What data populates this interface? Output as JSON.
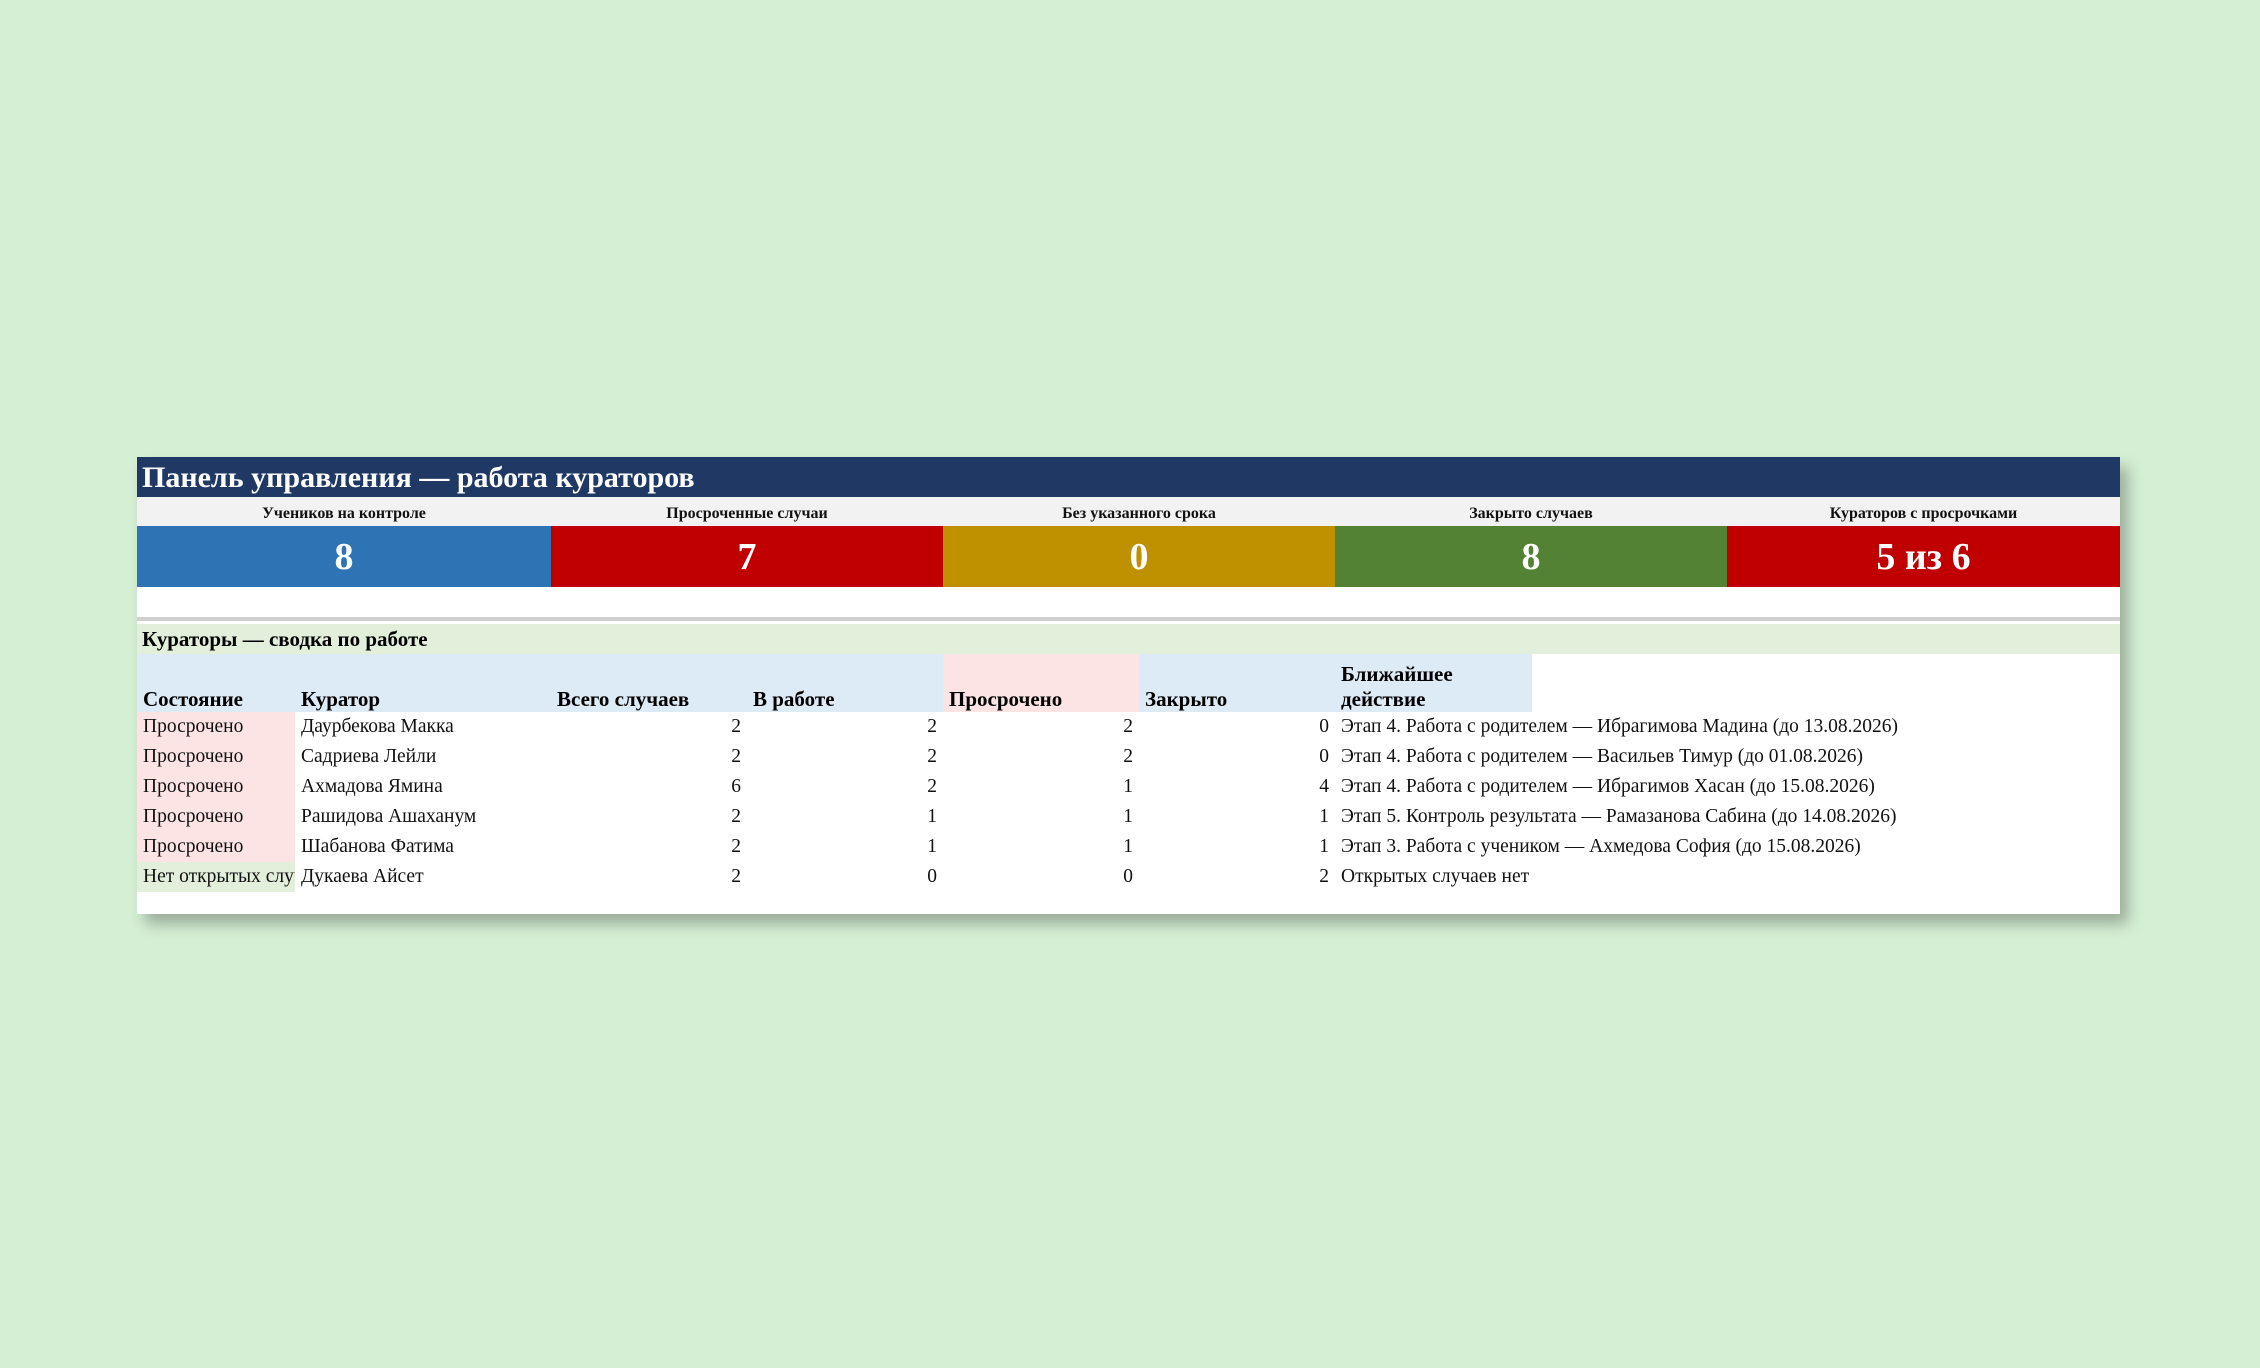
{
  "header": {
    "title": "Панель управления — работа кураторов"
  },
  "kpis": [
    {
      "label": "Учеников на контроле",
      "value": "8",
      "color": "#2e74b5"
    },
    {
      "label": "Просроченные случаи",
      "value": "7",
      "color": "#c00000"
    },
    {
      "label": "Без указанного срока",
      "value": "0",
      "color": "#bf9000"
    },
    {
      "label": "Закрыто случаев",
      "value": "8",
      "color": "#548235"
    },
    {
      "label": "Кураторов с просрочками",
      "value": "5 из 6",
      "color": "#c00000"
    }
  ],
  "section": {
    "title": "Кураторы — сводка по работе"
  },
  "table": {
    "columns": [
      "Состояние",
      "Куратор",
      "Всего случаев",
      "В работе",
      "Просрочено",
      "Закрыто",
      "Ближайшее действие"
    ],
    "rows": [
      [
        "Просрочено",
        "Даурбекова Макка",
        "2",
        "2",
        "2",
        "0",
        "Этап 4. Работа с родителем — Ибрагимова Мадина (до 13.08.2026)"
      ],
      [
        "Просрочено",
        "Садриева Лейли",
        "2",
        "2",
        "2",
        "0",
        "Этап 4. Работа с родителем — Васильев Тимур (до 01.08.2026)"
      ],
      [
        "Просрочено",
        "Ахмадова Ямина",
        "6",
        "2",
        "1",
        "4",
        "Этап 4. Работа с родителем — Ибрагимов Хасан (до 15.08.2026)"
      ],
      [
        "Просрочено",
        "Рашидова Ашаханум",
        "2",
        "1",
        "1",
        "1",
        "Этап 5. Контроль результата — Рамазанова Сабина (до 14.08.2026)"
      ],
      [
        "Просрочено",
        "Шабанова Фатима",
        "2",
        "1",
        "1",
        "1",
        "Этап 3. Работа с учеником — Ахмедова София (до 15.08.2026)"
      ],
      [
        "Нет открытых случаев",
        "Дукаева Айсет",
        "2",
        "0",
        "0",
        "2",
        "Открытых случаев нет"
      ]
    ]
  }
}
